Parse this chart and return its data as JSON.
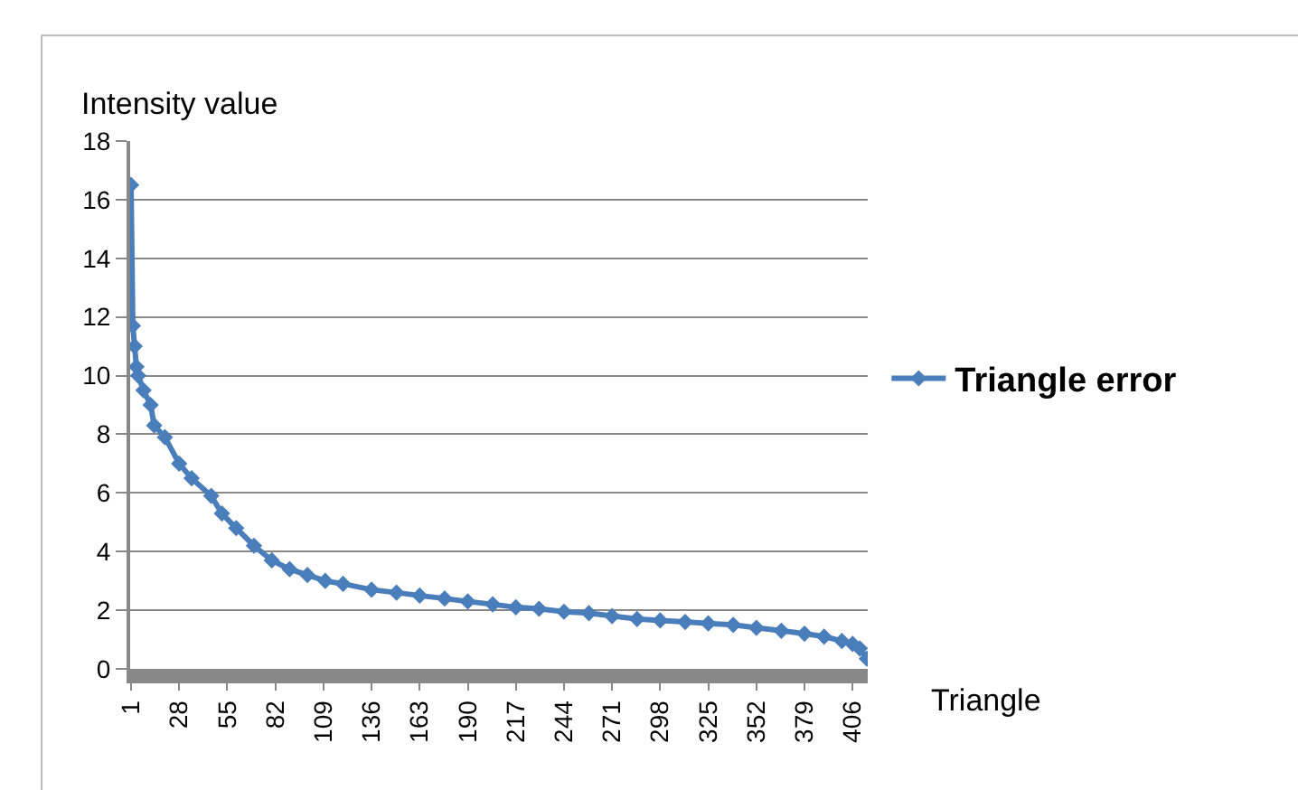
{
  "chart_data": {
    "type": "line",
    "xlabel": "Triangle",
    "ylabel": "Intensity value",
    "x": [
      1,
      2,
      3,
      4,
      5,
      8,
      12,
      14,
      20,
      28,
      35,
      46,
      52,
      60,
      70,
      80,
      90,
      100,
      110,
      120,
      136,
      150,
      163,
      177,
      190,
      204,
      217,
      230,
      244,
      258,
      271,
      285,
      298,
      312,
      325,
      339,
      352,
      366,
      379,
      390,
      400,
      406,
      410,
      414
    ],
    "series": [
      {
        "name": "Triangle error",
        "color": "#4a7ebb",
        "values": [
          16.5,
          11.7,
          11.0,
          10.3,
          10.0,
          9.5,
          9.0,
          8.3,
          7.9,
          7.0,
          6.5,
          5.9,
          5.3,
          4.8,
          4.2,
          3.7,
          3.4,
          3.2,
          3.0,
          2.9,
          2.7,
          2.6,
          2.5,
          2.4,
          2.3,
          2.2,
          2.1,
          2.05,
          1.95,
          1.9,
          1.8,
          1.7,
          1.65,
          1.6,
          1.55,
          1.5,
          1.4,
          1.3,
          1.2,
          1.1,
          0.95,
          0.85,
          0.7,
          0.35
        ]
      }
    ],
    "xlim": [
      0.5,
      414.5
    ],
    "xticks": [
      1,
      28,
      55,
      82,
      109,
      136,
      163,
      190,
      217,
      244,
      271,
      298,
      325,
      352,
      379,
      406
    ],
    "ylim": [
      0,
      18
    ],
    "yticks": [
      0,
      2,
      4,
      6,
      8,
      10,
      12,
      14,
      16,
      18
    ],
    "grid": "y",
    "legend": "right",
    "marker": "diamond",
    "line_style": "solid"
  }
}
